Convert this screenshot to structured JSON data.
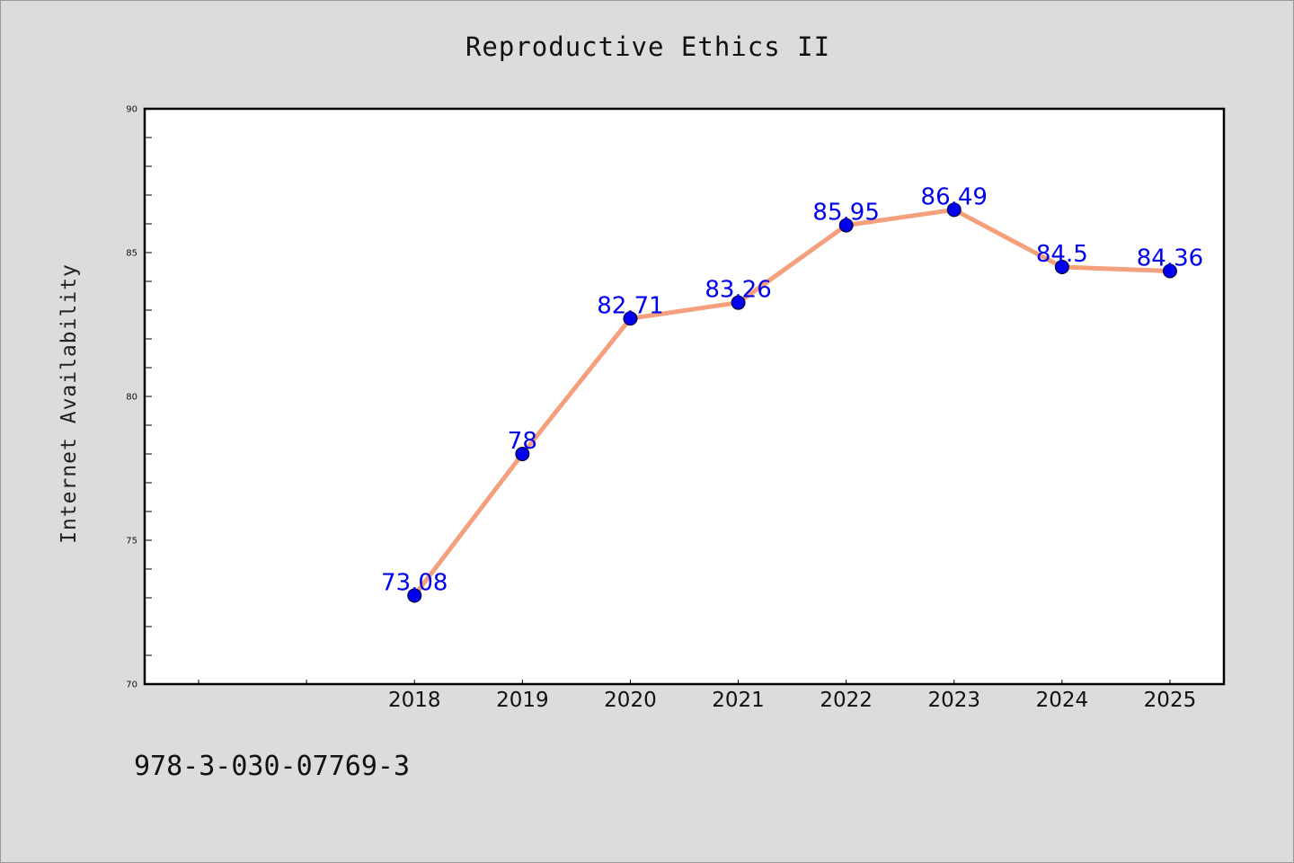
{
  "chart_data": {
    "type": "line",
    "title": "Reproductive Ethics II",
    "xlabel": "",
    "ylabel": "Internet Availability",
    "x": [
      "2018",
      "2019",
      "2020",
      "2021",
      "2022",
      "2023",
      "2024",
      "2025"
    ],
    "values": [
      73.08,
      78,
      82.71,
      83.26,
      85.95,
      86.49,
      84.5,
      84.36
    ],
    "data_labels": [
      "73.08",
      "78",
      "82.71",
      "83.26",
      "85.95",
      "86.49",
      "84.5",
      "84.36"
    ],
    "y_ticks": [
      "70",
      "75",
      "80",
      "85",
      "90"
    ],
    "ylim": [
      70,
      90
    ],
    "x_range": [
      "2016",
      "2025"
    ],
    "grid": false,
    "line_color": "#f4a07c",
    "marker_color": "#0000ee",
    "label_color": "#0000ee"
  },
  "footer": {
    "isbn": "978-3-030-07769-3"
  }
}
